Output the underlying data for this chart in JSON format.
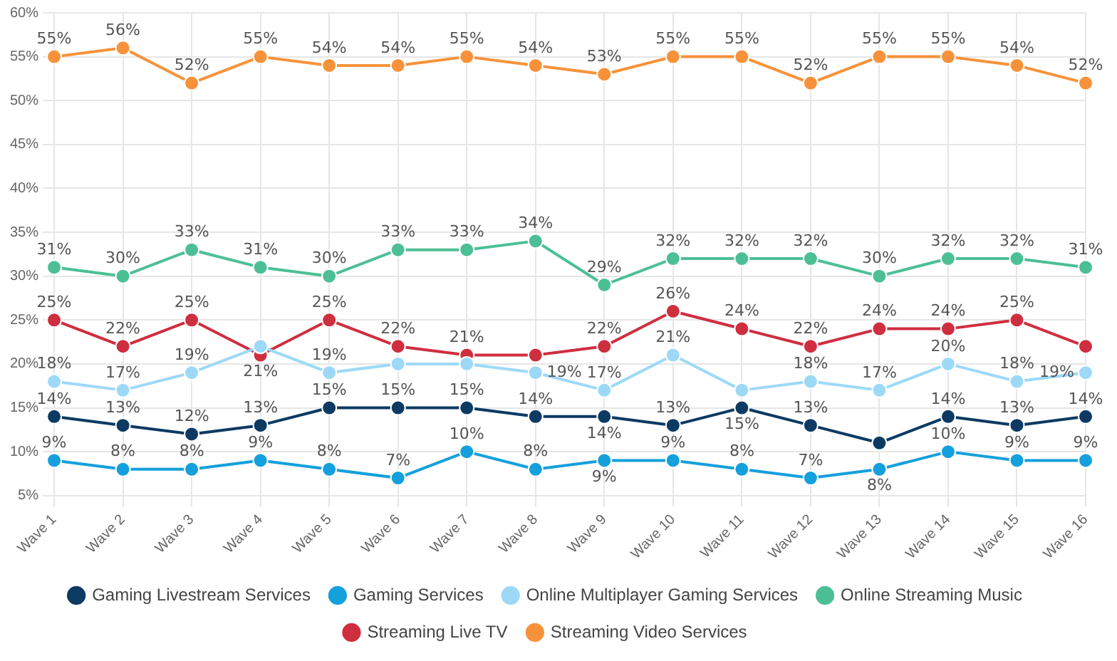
{
  "chart_data": {
    "type": "line",
    "categories": [
      "Wave 1",
      "Wave 2",
      "Wave 3",
      "Wave 4",
      "Wave 5",
      "Wave 6",
      "Wave 7",
      "Wave 8",
      "Wave 9",
      "Wave 10",
      "Wave 11",
      "Wave 12",
      "Wave 13",
      "Wave 14",
      "Wave 15",
      "Wave 16"
    ],
    "ylim": [
      5,
      60
    ],
    "yticks": [
      {
        "value": 5,
        "label": "5%"
      },
      {
        "value": 10,
        "label": "10%"
      },
      {
        "value": 15,
        "label": "15%"
      },
      {
        "value": 20,
        "label": "20%"
      },
      {
        "value": 25,
        "label": "25%"
      },
      {
        "value": 30,
        "label": "30%"
      },
      {
        "value": 35,
        "label": "35%"
      },
      {
        "value": 40,
        "label": "40%"
      },
      {
        "value": 45,
        "label": "45%"
      },
      {
        "value": 50,
        "label": "50%"
      },
      {
        "value": 55,
        "label": "55%"
      },
      {
        "value": 60,
        "label": "60%"
      }
    ],
    "grid": true,
    "legend": "bottom",
    "marker": "circle",
    "line_style": "solid",
    "series": [
      {
        "name": "Gaming Livestream Services",
        "color": "#0d3a63",
        "values": [
          14,
          13,
          12,
          13,
          15,
          15,
          15,
          14,
          14,
          13,
          15,
          13,
          11,
          14,
          13,
          14
        ],
        "value_labels": [
          "14%",
          "13%",
          "12%",
          "13%",
          "15%",
          "15%",
          "15%",
          "14%",
          "14%",
          "13%",
          "15%",
          "13%",
          null,
          "14%",
          "13%",
          "14%"
        ]
      },
      {
        "name": "Gaming Services",
        "color": "#14a0dc",
        "values": [
          9,
          8,
          8,
          9,
          8,
          7,
          10,
          8,
          9,
          9,
          8,
          7,
          8,
          10,
          9,
          9
        ],
        "value_labels": [
          "9%",
          "8%",
          "8%",
          "9%",
          "8%",
          "7%",
          "10%",
          "8%",
          "9%",
          "9%",
          "8%",
          "7%",
          "8%",
          "10%",
          "9%",
          "9%"
        ]
      },
      {
        "name": "Online Multiplayer Gaming Services",
        "color": "#9dd9f7",
        "values": [
          18,
          17,
          19,
          22,
          19,
          20,
          20,
          19,
          17,
          21,
          17,
          18,
          17,
          20,
          18,
          19
        ],
        "value_labels": [
          "18%",
          "17%",
          "19%",
          null,
          "19%",
          null,
          null,
          "19%",
          "17%",
          "21%",
          null,
          "18%",
          "17%",
          "20%",
          "18%",
          "19%"
        ]
      },
      {
        "name": "Online Streaming Music",
        "color": "#4dbf95",
        "values": [
          31,
          30,
          33,
          31,
          30,
          33,
          33,
          34,
          29,
          32,
          32,
          32,
          30,
          32,
          32,
          31
        ],
        "value_labels": [
          "31%",
          "30%",
          "33%",
          "31%",
          "30%",
          "33%",
          "33%",
          "34%",
          "29%",
          "32%",
          "32%",
          "32%",
          "30%",
          "32%",
          "32%",
          "31%"
        ]
      },
      {
        "name": "Streaming Live TV",
        "color": "#cf2e3f",
        "values": [
          25,
          22,
          25,
          21,
          25,
          22,
          21,
          21,
          22,
          26,
          24,
          22,
          24,
          24,
          25,
          22
        ],
        "value_labels": [
          "25%",
          "22%",
          "25%",
          "21%",
          "25%",
          "22%",
          "21%",
          null,
          "22%",
          "26%",
          "24%",
          "22%",
          "24%",
          "24%",
          "25%",
          null
        ]
      },
      {
        "name": "Streaming Video Services",
        "color": "#f7923a",
        "values": [
          55,
          56,
          52,
          55,
          54,
          54,
          55,
          54,
          53,
          55,
          55,
          52,
          55,
          55,
          54,
          52
        ],
        "value_labels": [
          "55%",
          "56%",
          "52%",
          "55%",
          "54%",
          "54%",
          "55%",
          "54%",
          "53%",
          "55%",
          "55%",
          "52%",
          "55%",
          "55%",
          "54%",
          "52%"
        ]
      }
    ]
  }
}
